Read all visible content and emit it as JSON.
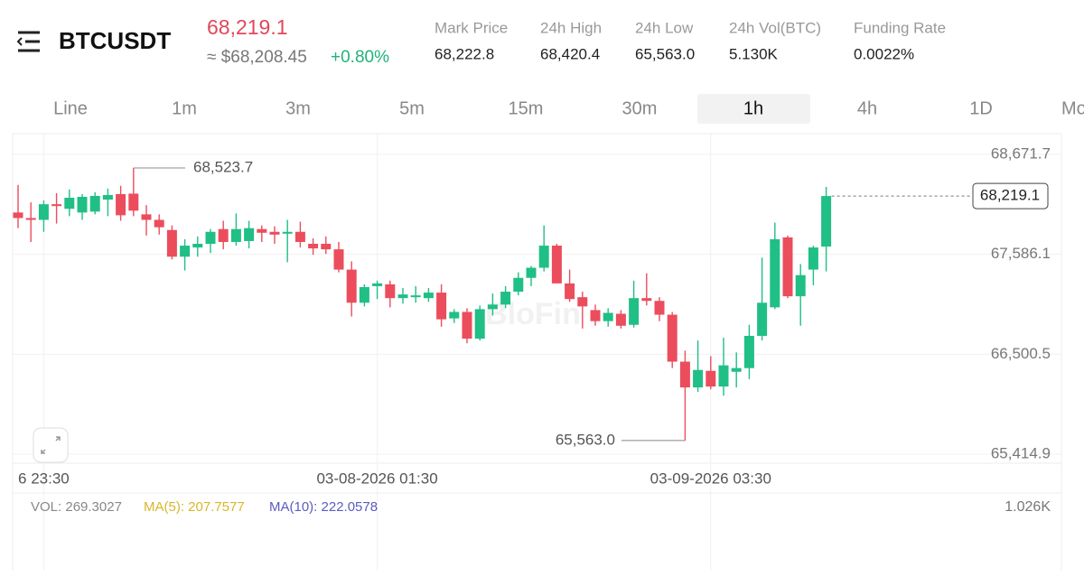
{
  "header": {
    "symbol": "BTCUSDT",
    "price": "68,219.1",
    "usd_price": "≈ $68,208.45",
    "change": "+0.80%",
    "stats": [
      {
        "label": "Mark Price",
        "value": "68,222.8"
      },
      {
        "label": "24h High",
        "value": "68,420.4"
      },
      {
        "label": "24h Low",
        "value": "65,563.0"
      },
      {
        "label": "24h Vol(BTC)",
        "value": "5.130K"
      },
      {
        "label": "Funding Rate",
        "value": "0.0022%"
      }
    ]
  },
  "tabs": [
    "Line",
    "1m",
    "3m",
    "5m",
    "15m",
    "30m",
    "1h",
    "4h",
    "1D",
    "Mo"
  ],
  "active_tab": 6,
  "chart_data": {
    "type": "candlestick",
    "watermark": "BloFin",
    "categories": [
      null,
      null,
      "6 23:30",
      null,
      null,
      null,
      null,
      null,
      null,
      null,
      null,
      null,
      null,
      null,
      null,
      null,
      null,
      null,
      null,
      null,
      null,
      null,
      null,
      null,
      null,
      null,
      null,
      null,
      "03-08-2026 01:30",
      null,
      null,
      null,
      null,
      null,
      null,
      null,
      null,
      null,
      null,
      null,
      null,
      null,
      null,
      null,
      null,
      null,
      null,
      null,
      null,
      null,
      null,
      null,
      null,
      null,
      "03-09-2026 03:30",
      null,
      null,
      null,
      null,
      null,
      null,
      null,
      null,
      null
    ],
    "open": [
      68040,
      67980,
      67960,
      68130,
      68080,
      68040,
      68050,
      68180,
      68240,
      68245,
      68020,
      67960,
      67850,
      67560,
      67660,
      67700,
      67860,
      67720,
      67730,
      67860,
      67830,
      67810,
      67830,
      67700,
      67700,
      67640,
      67420,
      67060,
      67240,
      67260,
      67110,
      67120,
      67110,
      67170,
      66890,
      66960,
      66670,
      66990,
      67040,
      67180,
      67330,
      67440,
      67680,
      67270,
      67120,
      66980,
      66860,
      66940,
      66820,
      67110,
      67080,
      66930,
      66420,
      66140,
      66320,
      66150,
      66310,
      66350,
      66700,
      67010,
      67770,
      67130,
      67420,
      67670
    ],
    "high": [
      68340,
      68150,
      68170,
      68250,
      68290,
      68240,
      68260,
      68300,
      68330,
      68523.7,
      68120,
      68020,
      67900,
      67750,
      67780,
      67860,
      67950,
      68030,
      67950,
      67900,
      67890,
      67960,
      67940,
      67760,
      67780,
      67720,
      67510,
      67260,
      67300,
      67300,
      67220,
      67240,
      67220,
      67260,
      66990,
      67000,
      67030,
      67160,
      67240,
      67390,
      67460,
      67900,
      67700,
      67420,
      67180,
      67040,
      67000,
      66980,
      67300,
      67380,
      67120,
      66960,
      66540,
      66650,
      66480,
      66680,
      66520,
      66820,
      67550,
      67930,
      67790,
      67480,
      67680,
      68318
    ],
    "low": [
      67870,
      67720,
      67830,
      67920,
      68000,
      67960,
      68020,
      68000,
      67950,
      68000,
      67790,
      67800,
      67530,
      67410,
      67560,
      67600,
      67640,
      67680,
      67650,
      67720,
      67700,
      67500,
      67660,
      67580,
      67590,
      67390,
      66910,
      67020,
      67100,
      67010,
      67050,
      67060,
      67070,
      66800,
      66840,
      66620,
      66650,
      66920,
      67000,
      67140,
      67240,
      67400,
      67270,
      67070,
      66780,
      66810,
      66800,
      66780,
      66790,
      67030,
      66860,
      66350,
      65563.0,
      66090,
      66120,
      66050,
      66140,
      66230,
      66650,
      66990,
      67110,
      66810,
      67250,
      67400
    ],
    "close": [
      67980,
      67960,
      68130,
      68110,
      68200,
      68210,
      68220,
      68230,
      68010,
      68060,
      67960,
      67880,
      67560,
      67680,
      67700,
      67830,
      67720,
      67860,
      67870,
      67820,
      67800,
      67830,
      67720,
      67650,
      67640,
      67420,
      67060,
      67230,
      67270,
      67110,
      67150,
      67140,
      67170,
      66880,
      66960,
      66670,
      66990,
      67040,
      67180,
      67330,
      67440,
      67680,
      67270,
      67100,
      67020,
      66860,
      66950,
      66810,
      67110,
      67080,
      66930,
      66420,
      66140,
      66330,
      66150,
      66380,
      66350,
      66700,
      67060,
      67750,
      67130,
      67360,
      67660,
      68219.1
    ],
    "up_color": "#20bf86",
    "down_color": "#eb4d5c",
    "ylim": [
      65317,
      68877
    ],
    "yticks": [
      {
        "value": 68671.7,
        "label": "68,671.7"
      },
      {
        "value": 67586.1,
        "label": "67,586.1"
      },
      {
        "value": 66500.5,
        "label": "66,500.5"
      },
      {
        "value": 65414.9,
        "label": "65,414.9"
      }
    ],
    "last_price": {
      "value": 68219.1,
      "label": "68,219.1"
    },
    "high_marker": {
      "value": 68523.7,
      "label": "68,523.7"
    },
    "low_marker": {
      "value": 65563.0,
      "label": "65,563.0"
    },
    "grid": true
  },
  "volume": {
    "vol": "VOL: 269.3027",
    "ma5": "MA(5): 207.7577",
    "ma10": "MA(10): 222.0578",
    "max": "1.026K"
  }
}
